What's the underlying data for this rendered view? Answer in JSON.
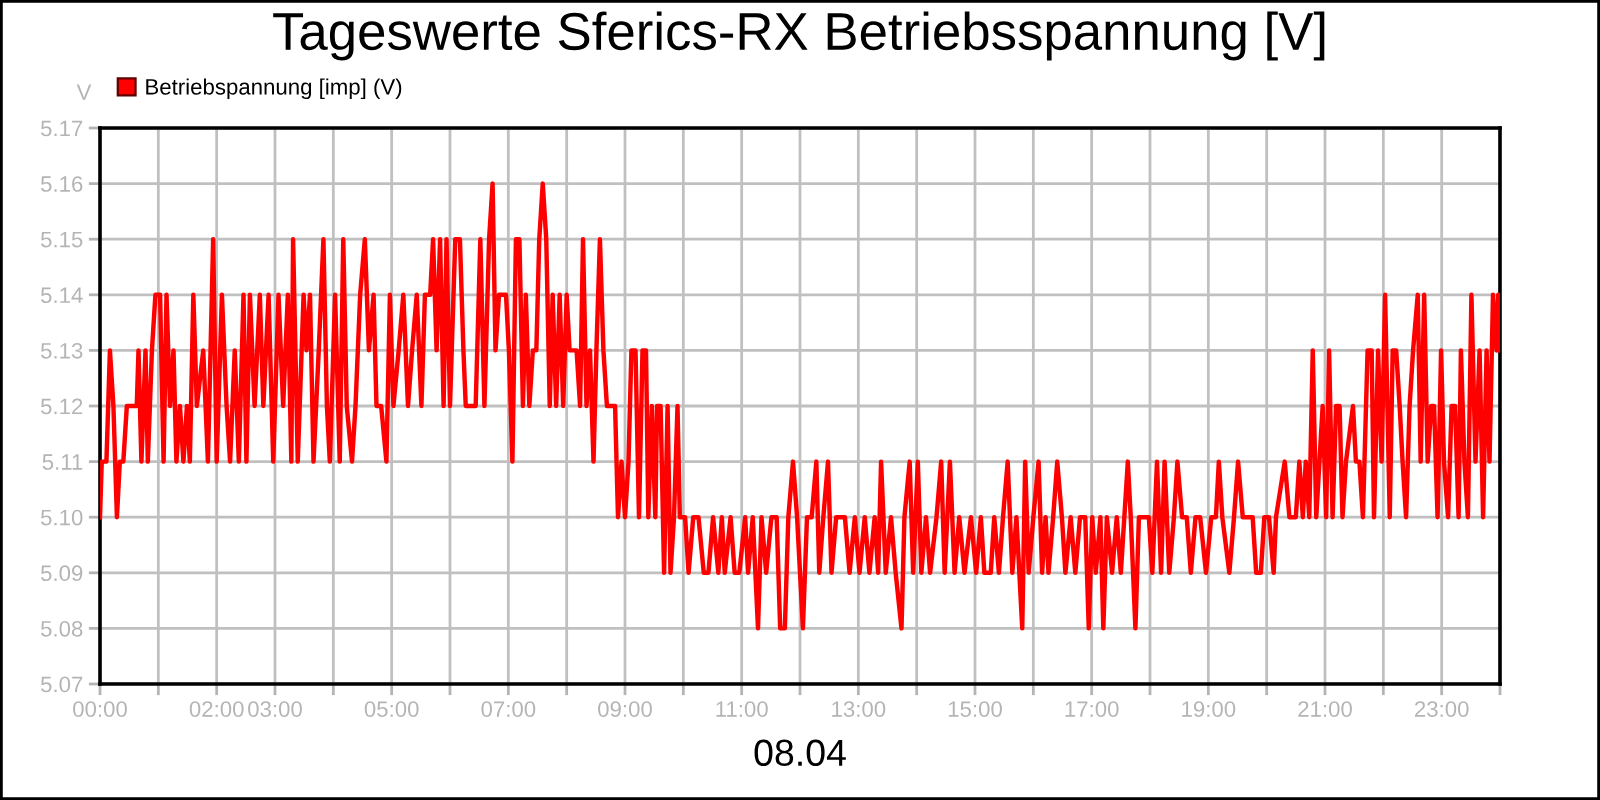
{
  "chart_data": {
    "type": "line",
    "title": "Tageswerte Sferics-RX Betriebsspannung [V]",
    "xlabel": "08.04",
    "ylabel": "V",
    "series": [
      {
        "name": "Betriebspannung [imp] (V)",
        "color": "#ff0000",
        "x": [
          0,
          0.03,
          0.11,
          0.17,
          0.23,
          0.29,
          0.34,
          0.4,
          0.46,
          0.63,
          0.66,
          0.71,
          0.78,
          0.82,
          0.89,
          0.95,
          1.03,
          1.09,
          1.14,
          1.2,
          1.26,
          1.31,
          1.37,
          1.43,
          1.49,
          1.54,
          1.6,
          1.66,
          1.77,
          1.85,
          1.94,
          2.0,
          2.09,
          2.17,
          2.23,
          2.31,
          2.38,
          2.46,
          2.51,
          2.57,
          2.65,
          2.74,
          2.8,
          2.89,
          2.97,
          3.06,
          3.14,
          3.22,
          3.28,
          3.31,
          3.39,
          3.49,
          3.54,
          3.6,
          3.66,
          3.75,
          3.83,
          3.89,
          3.94,
          4.03,
          4.11,
          4.17,
          4.23,
          4.32,
          4.38,
          4.46,
          4.54,
          4.61,
          4.69,
          4.74,
          4.82,
          4.91,
          4.97,
          5.03,
          5.12,
          5.2,
          5.28,
          5.35,
          5.43,
          5.51,
          5.57,
          5.66,
          5.71,
          5.77,
          5.83,
          5.89,
          5.94,
          6.0,
          6.09,
          6.17,
          6.23,
          6.27,
          6.44,
          6.52,
          6.59,
          6.67,
          6.73,
          6.78,
          6.84,
          6.96,
          7.01,
          7.07,
          7.13,
          7.19,
          7.25,
          7.3,
          7.36,
          7.42,
          7.48,
          7.53,
          7.59,
          7.65,
          7.71,
          7.76,
          7.82,
          7.88,
          7.94,
          8.0,
          8.05,
          8.17,
          8.23,
          8.28,
          8.34,
          8.4,
          8.46,
          8.51,
          8.57,
          8.63,
          8.69,
          8.83,
          8.88,
          8.94,
          9.0,
          9.06,
          9.11,
          9.18,
          9.24,
          9.3,
          9.36,
          9.4,
          9.46,
          9.52,
          9.55,
          9.61,
          9.67,
          9.73,
          9.78,
          9.84,
          9.9,
          9.94,
          10.03,
          10.09,
          10.17,
          10.26,
          10.35,
          10.43,
          10.51,
          10.6,
          10.66,
          10.71,
          10.81,
          10.88,
          10.96,
          11.06,
          11.11,
          11.19,
          11.28,
          11.34,
          11.42,
          11.51,
          11.6,
          11.66,
          11.74,
          11.8,
          11.88,
          11.95,
          12.05,
          12.12,
          12.2,
          12.28,
          12.33,
          12.4,
          12.48,
          12.54,
          12.62,
          12.71,
          12.77,
          12.85,
          12.94,
          13.02,
          13.11,
          13.19,
          13.28,
          13.34,
          13.39,
          13.47,
          13.56,
          13.64,
          13.74,
          13.79,
          13.88,
          13.94,
          14.02,
          14.08,
          14.16,
          14.23,
          14.34,
          14.42,
          14.48,
          14.57,
          14.65,
          14.73,
          14.82,
          14.93,
          15.02,
          15.1,
          15.16,
          15.27,
          15.33,
          15.41,
          15.48,
          15.56,
          15.64,
          15.71,
          15.81,
          15.86,
          15.92,
          16.0,
          16.09,
          16.15,
          16.21,
          16.26,
          16.34,
          16.41,
          16.49,
          16.55,
          16.64,
          16.72,
          16.8,
          16.89,
          16.95,
          17.01,
          17.07,
          17.15,
          17.2,
          17.26,
          17.35,
          17.43,
          17.5,
          17.56,
          17.62,
          17.67,
          17.75,
          17.81,
          17.98,
          18.04,
          18.12,
          18.19,
          18.25,
          18.33,
          18.41,
          18.47,
          18.55,
          18.63,
          18.7,
          18.78,
          18.86,
          18.96,
          19.05,
          19.13,
          19.18,
          19.24,
          19.36,
          19.44,
          19.51,
          19.59,
          19.76,
          19.82,
          19.9,
          19.96,
          20.04,
          20.12,
          20.16,
          20.31,
          20.39,
          20.5,
          20.56,
          20.62,
          20.67,
          20.73,
          20.79,
          20.85,
          20.96,
          21.02,
          21.07,
          21.13,
          21.19,
          21.25,
          21.3,
          21.36,
          21.48,
          21.53,
          21.59,
          21.65,
          21.73,
          21.8,
          21.84,
          21.91,
          21.97,
          22.03,
          22.11,
          22.16,
          22.22,
          22.28,
          22.33,
          22.39,
          22.45,
          22.51,
          22.59,
          22.64,
          22.7,
          22.76,
          22.82,
          22.87,
          22.93,
          22.99,
          23.04,
          23.11,
          23.17,
          23.23,
          23.29,
          23.33,
          23.39,
          23.45,
          23.51,
          23.58,
          23.65,
          23.71,
          23.77,
          23.82,
          23.88,
          23.94,
          23.97,
          24.0
        ],
        "values": [
          5.1,
          5.11,
          5.11,
          5.13,
          5.12,
          5.1,
          5.11,
          5.11,
          5.12,
          5.12,
          5.13,
          5.11,
          5.13,
          5.11,
          5.13,
          5.14,
          5.14,
          5.11,
          5.14,
          5.12,
          5.13,
          5.11,
          5.12,
          5.11,
          5.12,
          5.11,
          5.14,
          5.12,
          5.13,
          5.11,
          5.15,
          5.11,
          5.14,
          5.12,
          5.11,
          5.13,
          5.11,
          5.14,
          5.11,
          5.14,
          5.12,
          5.14,
          5.12,
          5.14,
          5.11,
          5.14,
          5.12,
          5.14,
          5.11,
          5.15,
          5.11,
          5.14,
          5.13,
          5.14,
          5.11,
          5.13,
          5.15,
          5.12,
          5.11,
          5.14,
          5.11,
          5.15,
          5.12,
          5.11,
          5.12,
          5.14,
          5.15,
          5.13,
          5.14,
          5.12,
          5.12,
          5.11,
          5.14,
          5.12,
          5.13,
          5.14,
          5.12,
          5.13,
          5.14,
          5.12,
          5.14,
          5.14,
          5.15,
          5.13,
          5.15,
          5.12,
          5.15,
          5.12,
          5.15,
          5.15,
          5.13,
          5.12,
          5.12,
          5.15,
          5.12,
          5.15,
          5.16,
          5.13,
          5.14,
          5.14,
          5.13,
          5.11,
          5.15,
          5.15,
          5.12,
          5.14,
          5.12,
          5.13,
          5.13,
          5.15,
          5.16,
          5.15,
          5.12,
          5.14,
          5.12,
          5.14,
          5.12,
          5.14,
          5.13,
          5.13,
          5.12,
          5.15,
          5.12,
          5.13,
          5.11,
          5.13,
          5.15,
          5.13,
          5.12,
          5.12,
          5.1,
          5.11,
          5.1,
          5.11,
          5.13,
          5.13,
          5.1,
          5.13,
          5.13,
          5.1,
          5.12,
          5.1,
          5.12,
          5.12,
          5.09,
          5.12,
          5.09,
          5.1,
          5.12,
          5.1,
          5.1,
          5.09,
          5.1,
          5.1,
          5.09,
          5.09,
          5.1,
          5.09,
          5.1,
          5.09,
          5.1,
          5.09,
          5.09,
          5.1,
          5.09,
          5.1,
          5.08,
          5.1,
          5.09,
          5.1,
          5.1,
          5.08,
          5.08,
          5.1,
          5.11,
          5.1,
          5.08,
          5.1,
          5.1,
          5.11,
          5.09,
          5.1,
          5.11,
          5.09,
          5.1,
          5.1,
          5.1,
          5.09,
          5.1,
          5.09,
          5.1,
          5.09,
          5.1,
          5.09,
          5.11,
          5.09,
          5.1,
          5.09,
          5.08,
          5.1,
          5.11,
          5.09,
          5.11,
          5.09,
          5.1,
          5.09,
          5.1,
          5.11,
          5.09,
          5.11,
          5.09,
          5.1,
          5.09,
          5.1,
          5.09,
          5.1,
          5.09,
          5.09,
          5.1,
          5.09,
          5.1,
          5.11,
          5.09,
          5.1,
          5.08,
          5.11,
          5.09,
          5.1,
          5.11,
          5.09,
          5.1,
          5.09,
          5.1,
          5.11,
          5.1,
          5.09,
          5.1,
          5.09,
          5.1,
          5.1,
          5.08,
          5.1,
          5.09,
          5.1,
          5.08,
          5.1,
          5.09,
          5.1,
          5.09,
          5.1,
          5.11,
          5.1,
          5.08,
          5.1,
          5.1,
          5.09,
          5.11,
          5.09,
          5.11,
          5.09,
          5.1,
          5.11,
          5.1,
          5.1,
          5.09,
          5.1,
          5.1,
          5.09,
          5.1,
          5.1,
          5.11,
          5.1,
          5.09,
          5.1,
          5.11,
          5.1,
          5.1,
          5.09,
          5.09,
          5.1,
          5.1,
          5.09,
          5.1,
          5.11,
          5.1,
          5.1,
          5.11,
          5.1,
          5.11,
          5.1,
          5.13,
          5.1,
          5.12,
          5.1,
          5.13,
          5.1,
          5.12,
          5.12,
          5.1,
          5.11,
          5.12,
          5.11,
          5.11,
          5.1,
          5.13,
          5.13,
          5.1,
          5.13,
          5.11,
          5.14,
          5.1,
          5.13,
          5.13,
          5.12,
          5.11,
          5.1,
          5.12,
          5.13,
          5.14,
          5.11,
          5.14,
          5.11,
          5.12,
          5.12,
          5.1,
          5.13,
          5.11,
          5.1,
          5.12,
          5.12,
          5.1,
          5.13,
          5.11,
          5.1,
          5.14,
          5.11,
          5.13,
          5.1,
          5.13,
          5.11,
          5.14,
          5.13,
          5.14,
          5.13
        ]
      }
    ],
    "xlim": [
      0,
      24
    ],
    "xticks": [
      {
        "value": 0,
        "label": "00:00"
      },
      {
        "value": 1,
        "label": null
      },
      {
        "value": 2,
        "label": "02:00"
      },
      {
        "value": 3,
        "label": "03:00"
      },
      {
        "value": 4,
        "label": null
      },
      {
        "value": 5,
        "label": "05:00"
      },
      {
        "value": 6,
        "label": null
      },
      {
        "value": 7,
        "label": "07:00"
      },
      {
        "value": 8,
        "label": null
      },
      {
        "value": 9,
        "label": "09:00"
      },
      {
        "value": 10,
        "label": null
      },
      {
        "value": 11,
        "label": "11:00"
      },
      {
        "value": 12,
        "label": null
      },
      {
        "value": 13,
        "label": "13:00"
      },
      {
        "value": 14,
        "label": null
      },
      {
        "value": 15,
        "label": "15:00"
      },
      {
        "value": 16,
        "label": null
      },
      {
        "value": 17,
        "label": "17:00"
      },
      {
        "value": 18,
        "label": null
      },
      {
        "value": 19,
        "label": "19:00"
      },
      {
        "value": 20,
        "label": null
      },
      {
        "value": 21,
        "label": "21:00"
      },
      {
        "value": 22,
        "label": null
      },
      {
        "value": 23,
        "label": "23:00"
      },
      {
        "value": 24,
        "label": null
      }
    ],
    "ylim": [
      5.07,
      5.17
    ],
    "yticks": [
      5.07,
      5.08,
      5.09,
      {
        "value": 5.1,
        "label": "5.10"
      },
      5.11,
      5.12,
      5.13,
      5.14,
      5.15,
      5.16,
      5.17
    ],
    "grid": true,
    "legend": "top left",
    "line_style": "solid"
  }
}
